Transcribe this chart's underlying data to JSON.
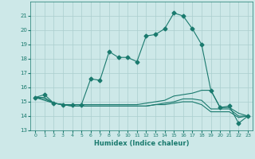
{
  "xlabel": "Humidex (Indice chaleur)",
  "xlim": [
    -0.5,
    23.5
  ],
  "ylim": [
    13,
    22
  ],
  "yticks": [
    13,
    14,
    15,
    16,
    17,
    18,
    19,
    20,
    21
  ],
  "xticks": [
    0,
    1,
    2,
    3,
    4,
    5,
    6,
    7,
    8,
    9,
    10,
    11,
    12,
    13,
    14,
    15,
    16,
    17,
    18,
    19,
    20,
    21,
    22,
    23
  ],
  "bg_color": "#cde8e8",
  "line_color": "#1a7a6e",
  "grid_color": "#aacece",
  "series": [
    {
      "x": [
        0,
        1,
        2,
        3,
        4,
        5,
        6,
        7,
        8,
        9,
        10,
        11,
        12,
        13,
        14,
        15,
        16,
        17,
        18,
        19,
        20,
        21,
        22,
        23
      ],
      "y": [
        15.3,
        15.5,
        14.9,
        14.8,
        14.8,
        14.8,
        16.6,
        16.5,
        18.5,
        18.1,
        18.1,
        17.8,
        19.6,
        19.7,
        20.1,
        21.2,
        21.0,
        20.1,
        19.0,
        15.8,
        14.6,
        14.7,
        13.5,
        14.0
      ],
      "marker": "D",
      "markersize": 2.5,
      "with_markers": true
    },
    {
      "x": [
        0,
        1,
        2,
        3,
        4,
        5,
        6,
        7,
        8,
        9,
        10,
        11,
        12,
        13,
        14,
        15,
        16,
        17,
        18,
        19,
        20,
        21,
        22,
        23
      ],
      "y": [
        15.3,
        15.3,
        14.9,
        14.8,
        14.8,
        14.8,
        14.8,
        14.8,
        14.8,
        14.8,
        14.8,
        14.8,
        14.9,
        15.0,
        15.1,
        15.4,
        15.5,
        15.6,
        15.8,
        15.8,
        14.6,
        14.6,
        14.2,
        14.0
      ],
      "with_markers": false
    },
    {
      "x": [
        0,
        1,
        2,
        3,
        4,
        5,
        6,
        7,
        8,
        9,
        10,
        11,
        12,
        13,
        14,
        15,
        16,
        17,
        18,
        19,
        20,
        21,
        22,
        23
      ],
      "y": [
        15.3,
        15.2,
        14.9,
        14.8,
        14.7,
        14.7,
        14.7,
        14.7,
        14.7,
        14.7,
        14.7,
        14.7,
        14.7,
        14.8,
        14.9,
        15.0,
        15.2,
        15.2,
        15.1,
        14.5,
        14.5,
        14.5,
        14.0,
        14.0
      ],
      "with_markers": false
    },
    {
      "x": [
        0,
        1,
        2,
        3,
        4,
        5,
        6,
        7,
        8,
        9,
        10,
        11,
        12,
        13,
        14,
        15,
        16,
        17,
        18,
        19,
        20,
        21,
        22,
        23
      ],
      "y": [
        15.3,
        15.1,
        14.9,
        14.8,
        14.7,
        14.7,
        14.7,
        14.7,
        14.7,
        14.7,
        14.7,
        14.7,
        14.7,
        14.8,
        14.8,
        14.9,
        15.0,
        15.0,
        14.8,
        14.3,
        14.3,
        14.3,
        13.9,
        14.0
      ],
      "with_markers": false
    }
  ]
}
